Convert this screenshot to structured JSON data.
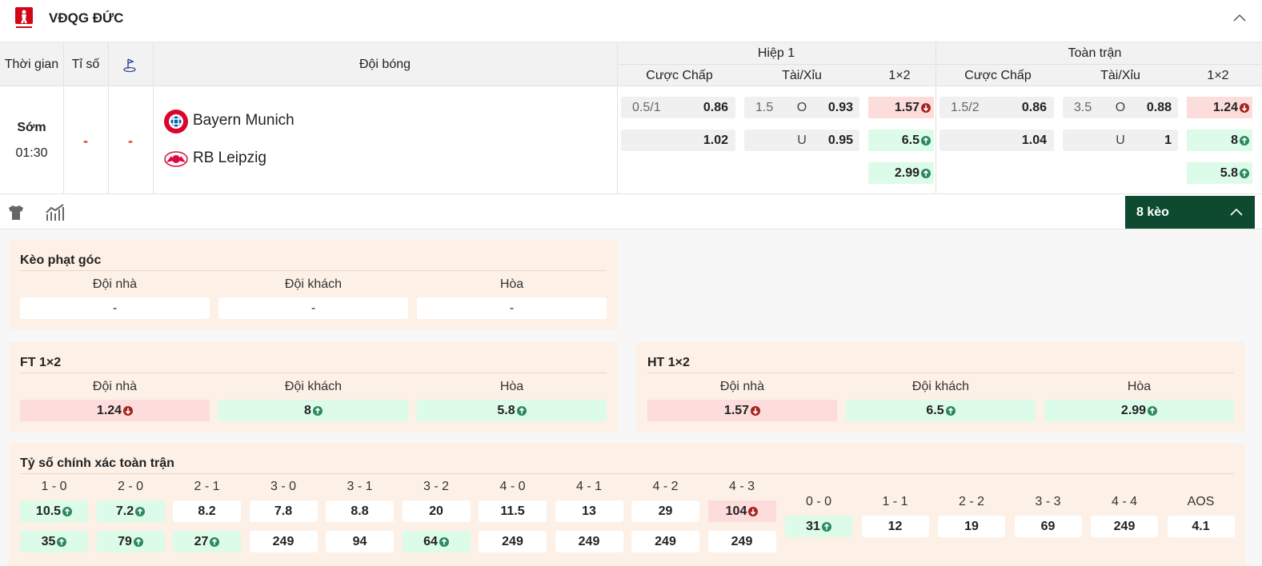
{
  "header": {
    "title": "VĐQG ĐỨC"
  },
  "table": {
    "columns": [
      "Thời gian",
      "Tỉ số",
      "Đội bóng"
    ],
    "groups": [
      {
        "title": "Hiệp 1",
        "sub": [
          "Cược Chấp",
          "Tài/Xỉu",
          "1×2"
        ]
      },
      {
        "title": "Toàn trận",
        "sub": [
          "Cược Chấp",
          "Tài/Xỉu",
          "1×2"
        ]
      }
    ]
  },
  "match": {
    "status": "Sớm",
    "time": "01:30",
    "score_home": "-",
    "score_away": "-",
    "home": "Bayern Munich",
    "away": "RB Leipzig",
    "markets": [
      {
        "handicap": {
          "line": "0.5/1",
          "home": "0.86",
          "away": "1.02"
        },
        "total": {
          "line": "1.5",
          "over_label": "O",
          "over": "0.93",
          "under_label": "U",
          "under": "0.95"
        },
        "x12": [
          {
            "value": "1.57",
            "trend": "down"
          },
          {
            "value": "6.5",
            "trend": "up"
          },
          {
            "value": "2.99",
            "trend": "up"
          }
        ]
      },
      {
        "handicap": {
          "line": "1.5/2",
          "home": "0.86",
          "away": "1.04"
        },
        "total": {
          "line": "3.5",
          "over_label": "O",
          "over": "0.88",
          "under_label": "U",
          "under": "1"
        },
        "x12": [
          {
            "value": "1.24",
            "trend": "down"
          },
          {
            "value": "8",
            "trend": "up"
          },
          {
            "value": "5.8",
            "trend": "up"
          }
        ]
      }
    ]
  },
  "toolbar": {
    "button": "8 kèo"
  },
  "panels": [
    {
      "title": "Kèo phạt góc",
      "headers": [
        "Đội nhà",
        "Đội khách",
        "Hòa"
      ],
      "values": [
        {
          "value": "-"
        },
        {
          "value": "-"
        },
        {
          "value": "-"
        }
      ]
    },
    {
      "title": "FT 1×2",
      "headers": [
        "Đội nhà",
        "Đội khách",
        "Hòa"
      ],
      "values": [
        {
          "value": "1.24",
          "trend": "down"
        },
        {
          "value": "8",
          "trend": "up"
        },
        {
          "value": "5.8",
          "trend": "up"
        }
      ]
    },
    {
      "title": "HT 1×2",
      "headers": [
        "Đội nhà",
        "Đội khách",
        "Hòa"
      ],
      "values": [
        {
          "value": "1.57",
          "trend": "down"
        },
        {
          "value": "6.5",
          "trend": "up"
        },
        {
          "value": "2.99",
          "trend": "up"
        }
      ]
    }
  ],
  "exact": {
    "title": "Tỷ số chính xác toàn trận",
    "scores": [
      {
        "label": "1 - 0",
        "values": [
          {
            "value": "10.5",
            "trend": "up"
          },
          {
            "value": "35",
            "trend": "up"
          }
        ]
      },
      {
        "label": "2 - 0",
        "values": [
          {
            "value": "7.2",
            "trend": "up"
          },
          {
            "value": "79",
            "trend": "up"
          }
        ]
      },
      {
        "label": "2 - 1",
        "values": [
          {
            "value": "8.2"
          },
          {
            "value": "27",
            "trend": "up"
          }
        ]
      },
      {
        "label": "3 - 0",
        "values": [
          {
            "value": "7.8"
          },
          {
            "value": "249"
          }
        ]
      },
      {
        "label": "3 - 1",
        "values": [
          {
            "value": "8.8"
          },
          {
            "value": "94"
          }
        ]
      },
      {
        "label": "3 - 2",
        "values": [
          {
            "value": "20"
          },
          {
            "value": "64",
            "trend": "up"
          }
        ]
      },
      {
        "label": "4 - 0",
        "values": [
          {
            "value": "11.5"
          },
          {
            "value": "249"
          }
        ]
      },
      {
        "label": "4 - 1",
        "values": [
          {
            "value": "13"
          },
          {
            "value": "249"
          }
        ]
      },
      {
        "label": "4 - 2",
        "values": [
          {
            "value": "29"
          },
          {
            "value": "249"
          }
        ]
      },
      {
        "label": "4 - 3",
        "values": [
          {
            "value": "104",
            "trend": "down"
          },
          {
            "value": "249"
          }
        ]
      }
    ],
    "draws": [
      {
        "label": "0 - 0",
        "value": {
          "value": "31",
          "trend": "up"
        }
      },
      {
        "label": "1 - 1",
        "value": {
          "value": "12"
        }
      },
      {
        "label": "2 - 2",
        "value": {
          "value": "19"
        }
      },
      {
        "label": "3 - 3",
        "value": {
          "value": "69"
        }
      },
      {
        "label": "4 - 4",
        "value": {
          "value": "249"
        }
      },
      {
        "label": "AOS",
        "value": {
          "value": "4.1"
        }
      }
    ]
  }
}
